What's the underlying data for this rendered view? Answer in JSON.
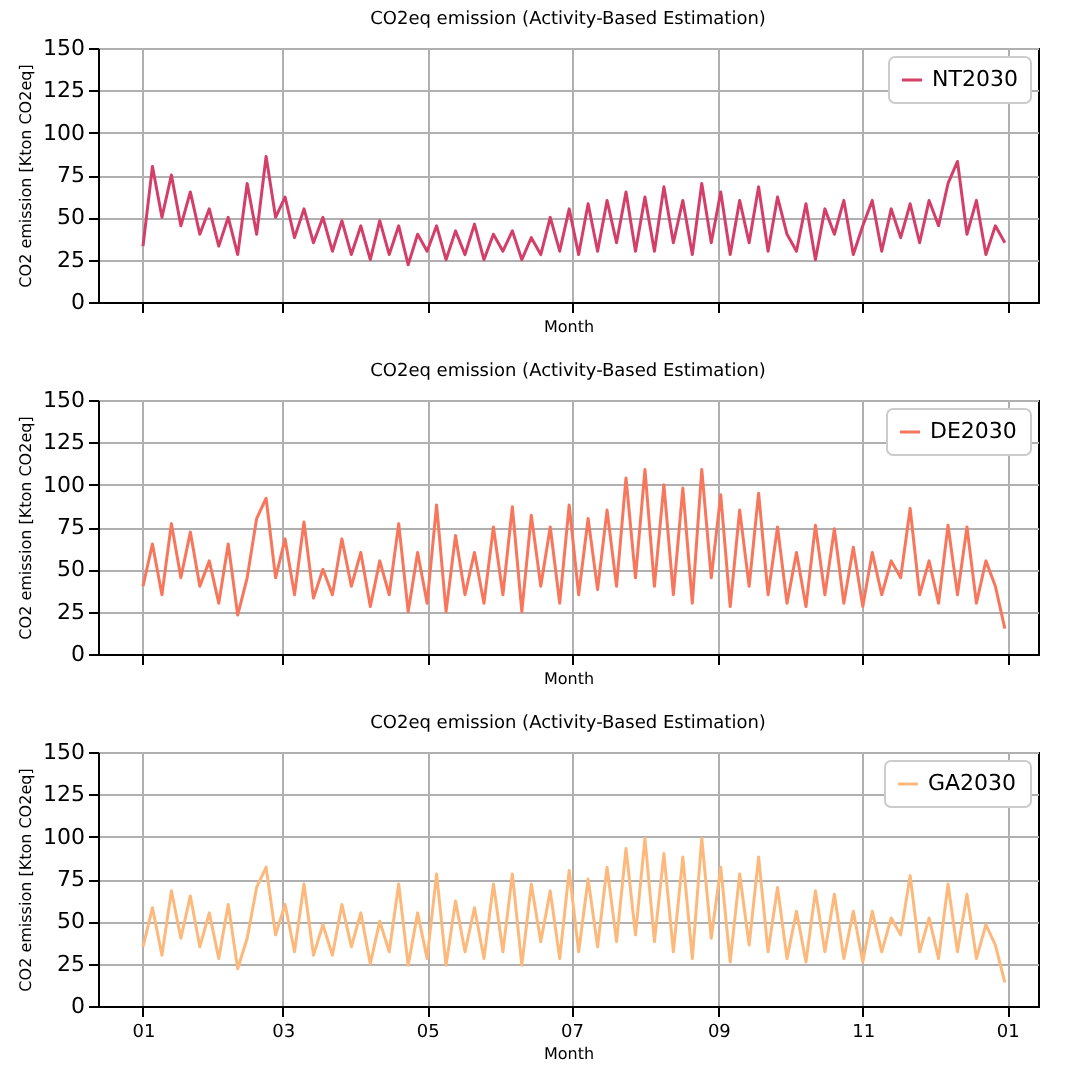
{
  "chart_data": [
    {
      "type": "line",
      "title": "CO2eq emission (Activity-Based Estimation)",
      "xlabel": "Month",
      "ylabel": "CO2 emission [Kton CO2eq]",
      "xlim": [
        "2029-12-13",
        "2031-01-14"
      ],
      "xticks": [
        {
          "value": "2030-01-01",
          "label": null
        },
        {
          "value": "2030-03-01",
          "label": null
        },
        {
          "value": "2030-05-01",
          "label": null
        },
        {
          "value": "2030-07-01",
          "label": null
        },
        {
          "value": "2030-09-01",
          "label": null
        },
        {
          "value": "2030-11-01",
          "label": null
        },
        {
          "value": "2031-01-01",
          "label": null
        }
      ],
      "ylim": [
        0,
        150
      ],
      "yticks": [
        0,
        25,
        50,
        75,
        100,
        125,
        150
      ],
      "grid": true,
      "legend": "top right",
      "tick_labels": "y",
      "line_style": "solid",
      "marker": "none",
      "x": [
        "2030-01-01",
        "2030-01-05",
        "2030-01-09",
        "2030-01-13",
        "2030-01-17",
        "2030-01-21",
        "2030-01-25",
        "2030-01-29",
        "2030-02-02",
        "2030-02-06",
        "2030-02-10",
        "2030-02-14",
        "2030-02-18",
        "2030-02-22",
        "2030-02-26",
        "2030-03-02",
        "2030-03-06",
        "2030-03-10",
        "2030-03-14",
        "2030-03-18",
        "2030-03-22",
        "2030-03-26",
        "2030-03-30",
        "2030-04-03",
        "2030-04-07",
        "2030-04-11",
        "2030-04-15",
        "2030-04-19",
        "2030-04-23",
        "2030-04-27",
        "2030-05-01",
        "2030-05-05",
        "2030-05-09",
        "2030-05-13",
        "2030-05-17",
        "2030-05-21",
        "2030-05-25",
        "2030-05-29",
        "2030-06-02",
        "2030-06-06",
        "2030-06-10",
        "2030-06-14",
        "2030-06-18",
        "2030-06-22",
        "2030-06-26",
        "2030-06-30",
        "2030-07-04",
        "2030-07-08",
        "2030-07-12",
        "2030-07-16",
        "2030-07-20",
        "2030-07-24",
        "2030-07-28",
        "2030-08-01",
        "2030-08-05",
        "2030-08-09",
        "2030-08-13",
        "2030-08-17",
        "2030-08-21",
        "2030-08-25",
        "2030-08-29",
        "2030-09-02",
        "2030-09-06",
        "2030-09-10",
        "2030-09-14",
        "2030-09-18",
        "2030-09-22",
        "2030-09-26",
        "2030-09-30",
        "2030-10-04",
        "2030-10-08",
        "2030-10-12",
        "2030-10-16",
        "2030-10-20",
        "2030-10-24",
        "2030-10-28",
        "2030-11-01",
        "2030-11-05",
        "2030-11-09",
        "2030-11-13",
        "2030-11-17",
        "2030-11-21",
        "2030-11-25",
        "2030-11-29",
        "2030-12-03",
        "2030-12-07",
        "2030-12-11",
        "2030-12-15",
        "2030-12-19",
        "2030-12-23",
        "2030-12-27",
        "2030-12-31"
      ],
      "series": [
        {
          "name": "NT2030",
          "color": "#d43f6a",
          "values": [
            33,
            80,
            50,
            75,
            45,
            65,
            40,
            55,
            33,
            50,
            28,
            70,
            40,
            86,
            50,
            62,
            38,
            55,
            35,
            50,
            30,
            48,
            28,
            45,
            25,
            48,
            28,
            45,
            22,
            40,
            30,
            45,
            25,
            42,
            28,
            46,
            25,
            40,
            30,
            42,
            25,
            38,
            28,
            50,
            30,
            55,
            28,
            58,
            30,
            60,
            35,
            65,
            30,
            62,
            30,
            68,
            35,
            60,
            28,
            70,
            35,
            65,
            28,
            60,
            35,
            68,
            30,
            62,
            40,
            30,
            58,
            25,
            55,
            40,
            60,
            28,
            45,
            60,
            30,
            55,
            38,
            58,
            35,
            60,
            45,
            70,
            83,
            40,
            60,
            28,
            45,
            35
          ]
        }
      ]
    },
    {
      "type": "line",
      "title": "CO2eq emission (Activity-Based Estimation)",
      "xlabel": "Month",
      "ylabel": "CO2 emission [Kton CO2eq]",
      "xlim": [
        "2029-12-13",
        "2031-01-14"
      ],
      "xticks": [
        {
          "value": "2030-01-01",
          "label": null
        },
        {
          "value": "2030-03-01",
          "label": null
        },
        {
          "value": "2030-05-01",
          "label": null
        },
        {
          "value": "2030-07-01",
          "label": null
        },
        {
          "value": "2030-09-01",
          "label": null
        },
        {
          "value": "2030-11-01",
          "label": null
        },
        {
          "value": "2031-01-01",
          "label": null
        }
      ],
      "ylim": [
        0,
        150
      ],
      "yticks": [
        0,
        25,
        50,
        75,
        100,
        125,
        150
      ],
      "grid": true,
      "legend": "top right",
      "tick_labels": "y",
      "line_style": "solid",
      "marker": "none",
      "x": [
        "2030-01-01",
        "2030-01-05",
        "2030-01-09",
        "2030-01-13",
        "2030-01-17",
        "2030-01-21",
        "2030-01-25",
        "2030-01-29",
        "2030-02-02",
        "2030-02-06",
        "2030-02-10",
        "2030-02-14",
        "2030-02-18",
        "2030-02-22",
        "2030-02-26",
        "2030-03-02",
        "2030-03-06",
        "2030-03-10",
        "2030-03-14",
        "2030-03-18",
        "2030-03-22",
        "2030-03-26",
        "2030-03-30",
        "2030-04-03",
        "2030-04-07",
        "2030-04-11",
        "2030-04-15",
        "2030-04-19",
        "2030-04-23",
        "2030-04-27",
        "2030-05-01",
        "2030-05-05",
        "2030-05-09",
        "2030-05-13",
        "2030-05-17",
        "2030-05-21",
        "2030-05-25",
        "2030-05-29",
        "2030-06-02",
        "2030-06-06",
        "2030-06-10",
        "2030-06-14",
        "2030-06-18",
        "2030-06-22",
        "2030-06-26",
        "2030-06-30",
        "2030-07-04",
        "2030-07-08",
        "2030-07-12",
        "2030-07-16",
        "2030-07-20",
        "2030-07-24",
        "2030-07-28",
        "2030-08-01",
        "2030-08-05",
        "2030-08-09",
        "2030-08-13",
        "2030-08-17",
        "2030-08-21",
        "2030-08-25",
        "2030-08-29",
        "2030-09-02",
        "2030-09-06",
        "2030-09-10",
        "2030-09-14",
        "2030-09-18",
        "2030-09-22",
        "2030-09-26",
        "2030-09-30",
        "2030-10-04",
        "2030-10-08",
        "2030-10-12",
        "2030-10-16",
        "2030-10-20",
        "2030-10-24",
        "2030-10-28",
        "2030-11-01",
        "2030-11-05",
        "2030-11-09",
        "2030-11-13",
        "2030-11-17",
        "2030-11-21",
        "2030-11-25",
        "2030-11-29",
        "2030-12-03",
        "2030-12-07",
        "2030-12-11",
        "2030-12-15",
        "2030-12-19",
        "2030-12-23",
        "2030-12-27",
        "2030-12-31"
      ],
      "series": [
        {
          "name": "DE2030",
          "color": "#f8765c",
          "values": [
            40,
            65,
            35,
            77,
            45,
            72,
            40,
            55,
            30,
            65,
            23,
            45,
            80,
            92,
            45,
            68,
            35,
            78,
            33,
            50,
            35,
            68,
            40,
            60,
            28,
            55,
            35,
            77,
            25,
            60,
            30,
            88,
            25,
            70,
            35,
            60,
            30,
            75,
            35,
            87,
            25,
            82,
            40,
            75,
            30,
            88,
            35,
            80,
            38,
            85,
            40,
            104,
            45,
            109,
            40,
            100,
            35,
            98,
            30,
            109,
            45,
            94,
            28,
            85,
            40,
            95,
            35,
            75,
            30,
            60,
            28,
            76,
            35,
            74,
            30,
            63,
            28,
            60,
            35,
            55,
            45,
            86,
            35,
            55,
            30,
            76,
            35,
            75,
            30,
            55,
            40,
            15
          ]
        }
      ]
    },
    {
      "type": "line",
      "title": "CO2eq emission (Activity-Based Estimation)",
      "xlabel": "Month",
      "ylabel": "CO2 emission [Kton CO2eq]",
      "xlim": [
        "2029-12-13",
        "2031-01-14"
      ],
      "xticks": [
        {
          "value": "2030-01-01",
          "label": "01"
        },
        {
          "value": "2030-03-01",
          "label": "03"
        },
        {
          "value": "2030-05-01",
          "label": "05"
        },
        {
          "value": "2030-07-01",
          "label": "07"
        },
        {
          "value": "2030-09-01",
          "label": "09"
        },
        {
          "value": "2030-11-01",
          "label": "11"
        },
        {
          "value": "2031-01-01",
          "label": "01"
        }
      ],
      "ylim": [
        0,
        150
      ],
      "yticks": [
        0,
        25,
        50,
        75,
        100,
        125,
        150
      ],
      "grid": true,
      "legend": "top right",
      "line_style": "solid",
      "marker": "none",
      "x": [
        "2030-01-01",
        "2030-01-05",
        "2030-01-09",
        "2030-01-13",
        "2030-01-17",
        "2030-01-21",
        "2030-01-25",
        "2030-01-29",
        "2030-02-02",
        "2030-02-06",
        "2030-02-10",
        "2030-02-14",
        "2030-02-18",
        "2030-02-22",
        "2030-02-26",
        "2030-03-02",
        "2030-03-06",
        "2030-03-10",
        "2030-03-14",
        "2030-03-18",
        "2030-03-22",
        "2030-03-26",
        "2030-03-30",
        "2030-04-03",
        "2030-04-07",
        "2030-04-11",
        "2030-04-15",
        "2030-04-19",
        "2030-04-23",
        "2030-04-27",
        "2030-05-01",
        "2030-05-05",
        "2030-05-09",
        "2030-05-13",
        "2030-05-17",
        "2030-05-21",
        "2030-05-25",
        "2030-05-29",
        "2030-06-02",
        "2030-06-06",
        "2030-06-10",
        "2030-06-14",
        "2030-06-18",
        "2030-06-22",
        "2030-06-26",
        "2030-06-30",
        "2030-07-04",
        "2030-07-08",
        "2030-07-12",
        "2030-07-16",
        "2030-07-20",
        "2030-07-24",
        "2030-07-28",
        "2030-08-01",
        "2030-08-05",
        "2030-08-09",
        "2030-08-13",
        "2030-08-17",
        "2030-08-21",
        "2030-08-25",
        "2030-08-29",
        "2030-09-02",
        "2030-09-06",
        "2030-09-10",
        "2030-09-14",
        "2030-09-18",
        "2030-09-22",
        "2030-09-26",
        "2030-09-30",
        "2030-10-04",
        "2030-10-08",
        "2030-10-12",
        "2030-10-16",
        "2030-10-20",
        "2030-10-24",
        "2030-10-28",
        "2030-11-01",
        "2030-11-05",
        "2030-11-09",
        "2030-11-13",
        "2030-11-17",
        "2030-11-21",
        "2030-11-25",
        "2030-11-29",
        "2030-12-03",
        "2030-12-07",
        "2030-12-11",
        "2030-12-15",
        "2030-12-19",
        "2030-12-23",
        "2030-12-27",
        "2030-12-31"
      ],
      "series": [
        {
          "name": "GA2030",
          "color": "#fdb97c",
          "values": [
            35,
            58,
            30,
            68,
            40,
            65,
            35,
            55,
            28,
            60,
            22,
            40,
            70,
            82,
            42,
            60,
            32,
            72,
            30,
            48,
            30,
            60,
            35,
            55,
            25,
            50,
            32,
            72,
            24,
            55,
            28,
            78,
            24,
            62,
            32,
            58,
            28,
            72,
            32,
            78,
            24,
            72,
            38,
            68,
            28,
            80,
            32,
            75,
            35,
            82,
            38,
            93,
            42,
            99,
            38,
            90,
            32,
            88,
            28,
            99,
            40,
            82,
            26,
            78,
            36,
            88,
            32,
            70,
            28,
            56,
            26,
            68,
            32,
            66,
            28,
            56,
            26,
            56,
            32,
            52,
            42,
            77,
            32,
            52,
            28,
            72,
            32,
            66,
            28,
            48,
            36,
            14
          ]
        }
      ]
    }
  ]
}
